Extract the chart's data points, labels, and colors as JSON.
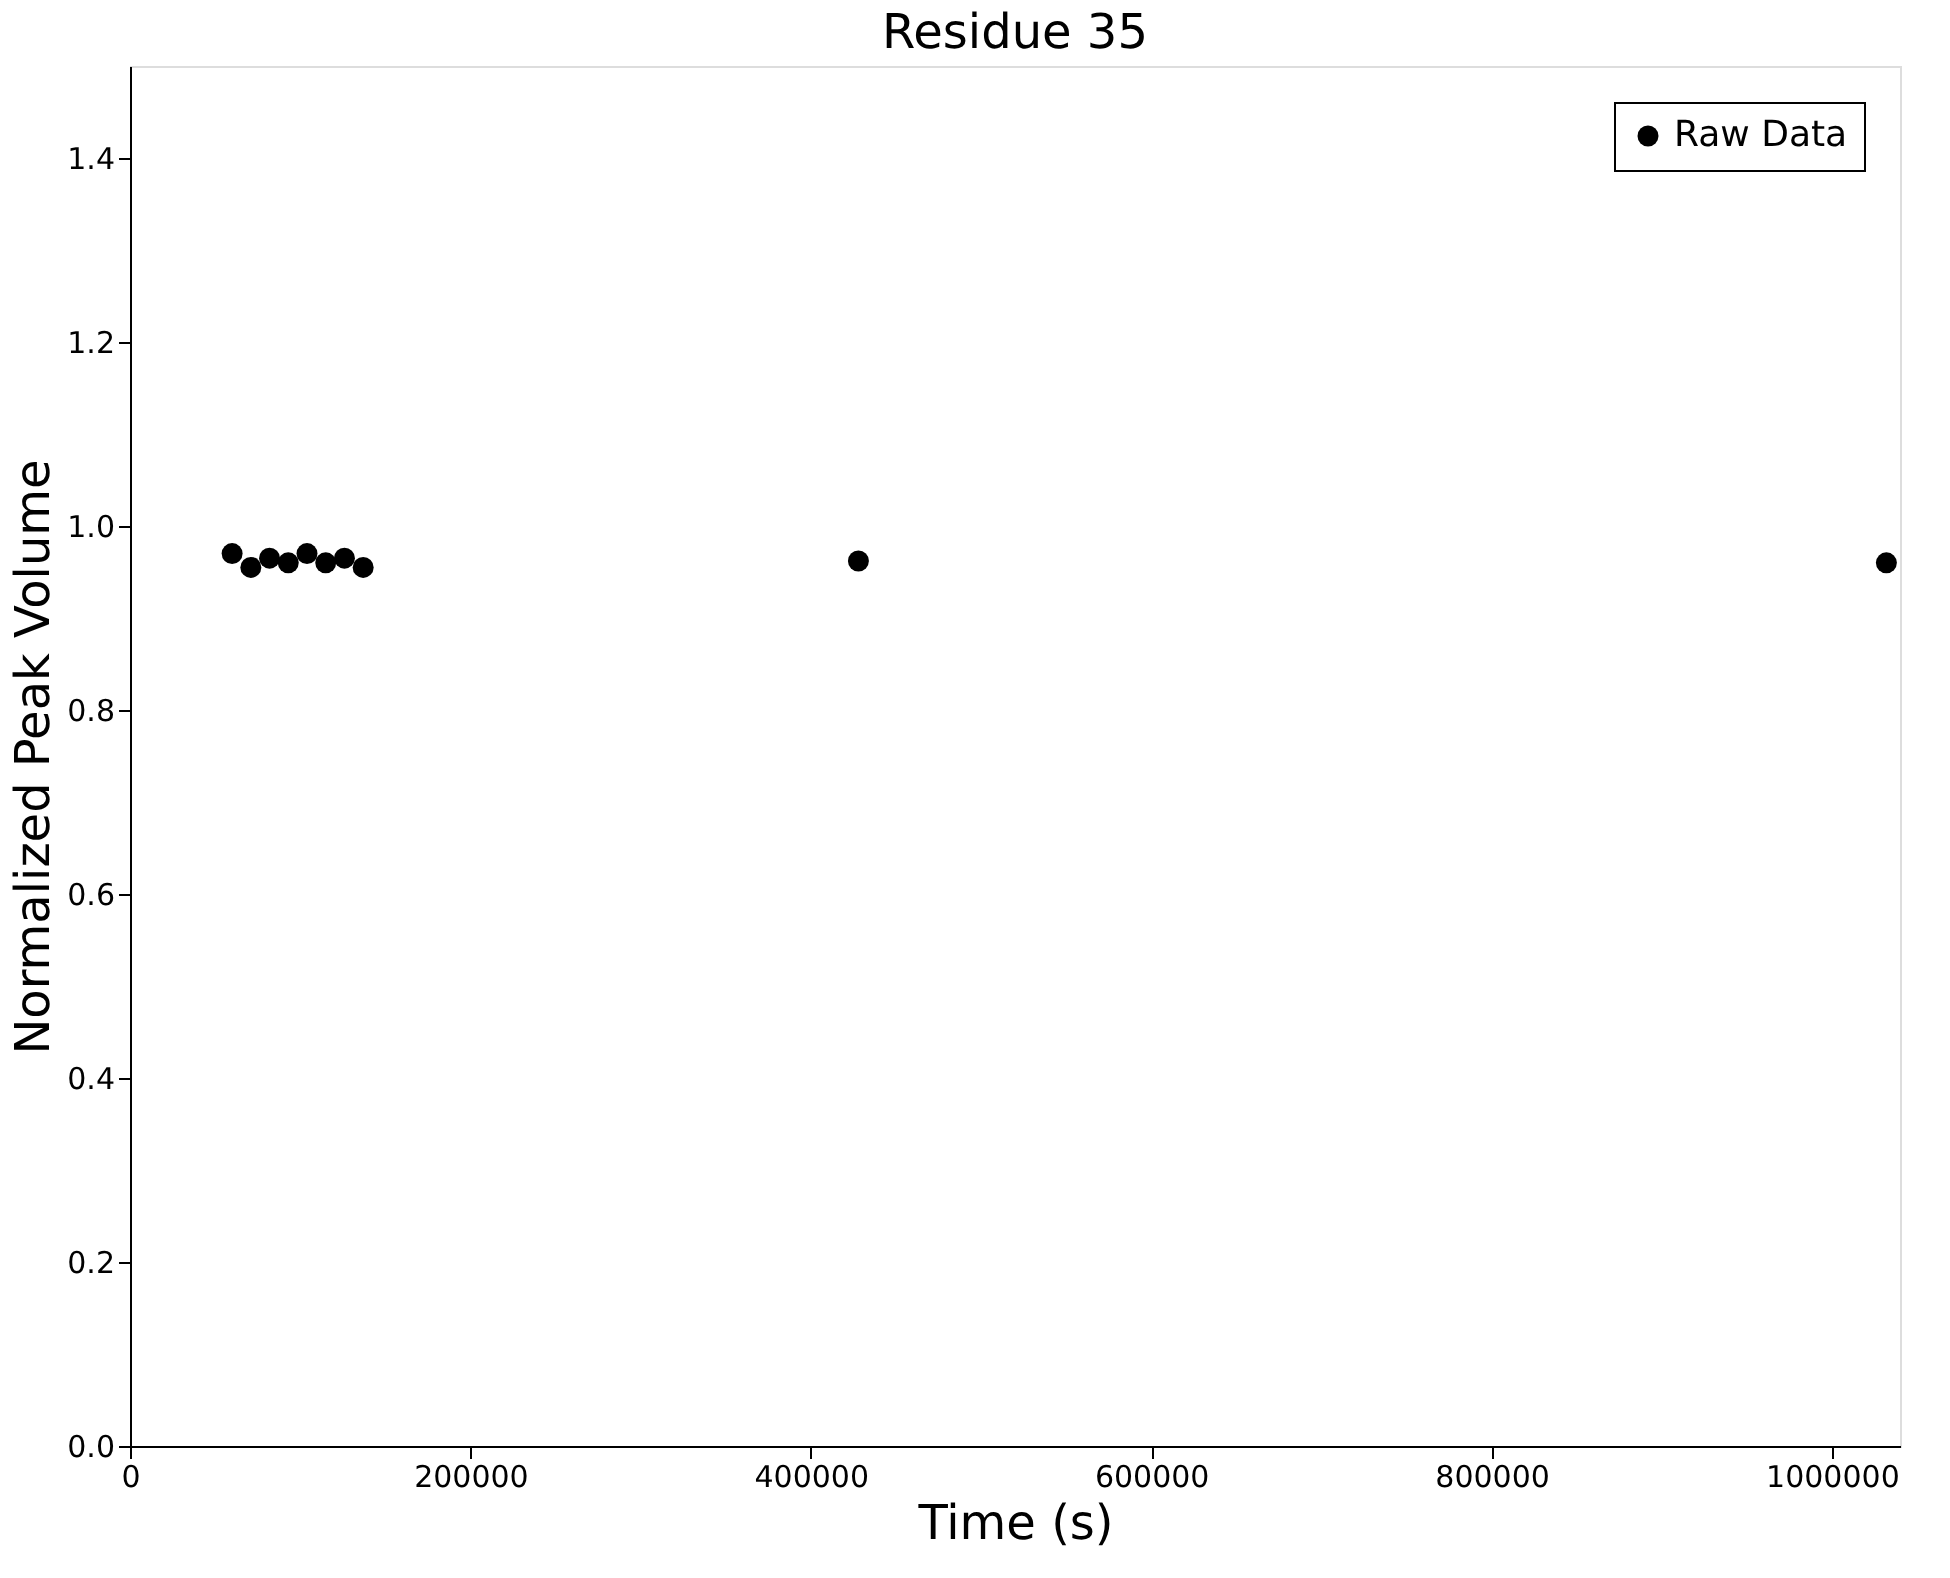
{
  "chart_data": {
    "type": "scatter",
    "title": "Residue 35",
    "xlabel": "Time (s)",
    "ylabel": "Normalized Peak Volume",
    "x": [
      60000,
      71000,
      82000,
      93000,
      104000,
      115000,
      126000,
      137000,
      428000,
      1032000
    ],
    "series": [
      {
        "name": "Raw Data",
        "color": "#000000",
        "values": [
          0.97,
          0.955,
          0.965,
          0.96,
          0.97,
          0.96,
          0.965,
          0.955,
          0.962,
          0.96
        ]
      }
    ],
    "xlim": [
      0,
      1040000
    ],
    "xticks": [
      0,
      200000,
      400000,
      600000,
      800000,
      1000000
    ],
    "ylim": [
      0,
      1.5
    ],
    "yticks": [
      {
        "value": 0,
        "label": "0.0"
      },
      {
        "value": 0.2,
        "label": "0.2"
      },
      {
        "value": 0.4,
        "label": "0.4"
      },
      {
        "value": 0.6,
        "label": "0.6"
      },
      {
        "value": 0.8,
        "label": "0.8"
      },
      {
        "value": 1.0,
        "label": "1.0"
      },
      {
        "value": 1.2,
        "label": "1.2"
      },
      {
        "value": 1.4,
        "label": "1.4"
      }
    ],
    "marker": "circle",
    "legend": "top right",
    "grid": false
  }
}
